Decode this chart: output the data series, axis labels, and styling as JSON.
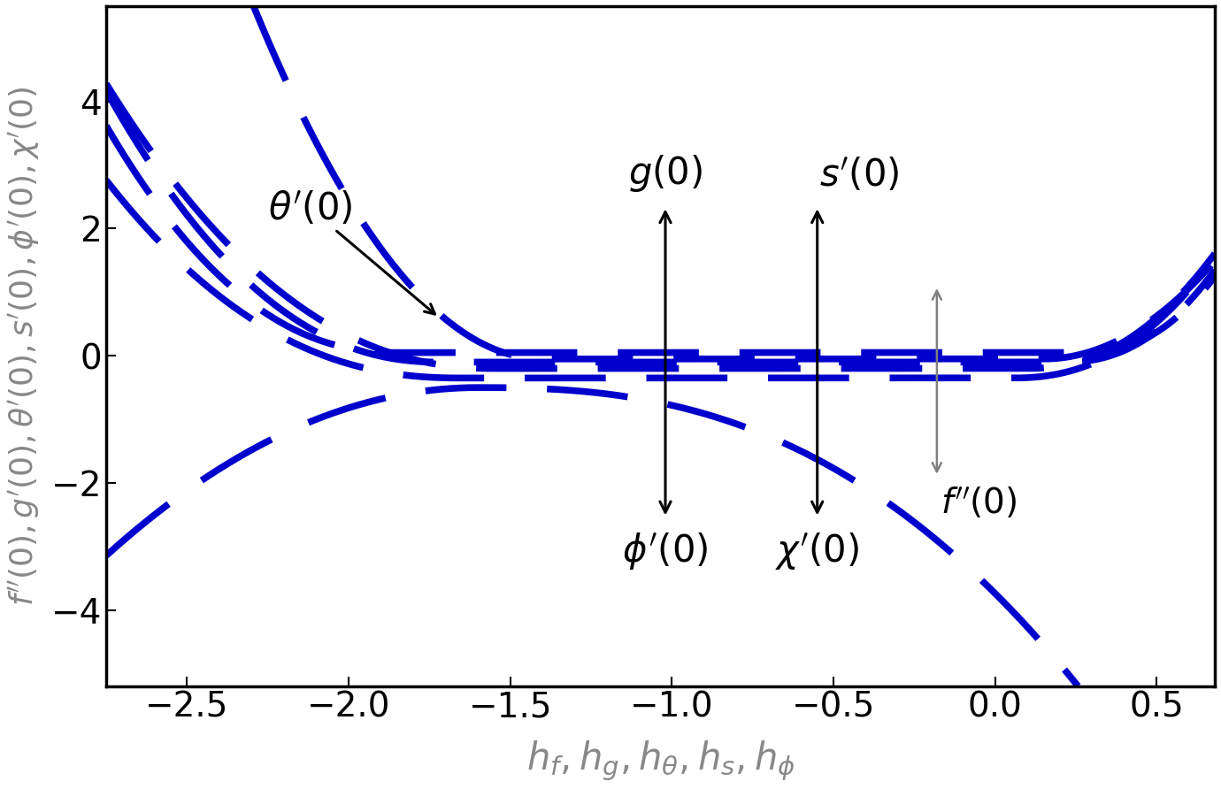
{
  "xlim": [
    -2.75,
    0.68
  ],
  "ylim": [
    -5.2,
    5.5
  ],
  "xlabel": "$h_f,h_g,h_\\theta,h_s,h_\\phi$",
  "ylabel": "$f^{\\prime\\prime}(0),g^{\\prime}(0),\\theta^{\\prime}(0),s^{\\prime}(0),\\phi^{\\prime}(0),\\chi^{\\prime}(0)$",
  "line_color": "#0000CD",
  "line_width": 5.5,
  "background_color": "#ffffff",
  "xlabel_color": "#888888",
  "ylabel_color": "#888888",
  "tick_labelsize": 28,
  "xlabel_fontsize": 30,
  "ylabel_fontsize": 26,
  "annotation_fontsize": 30,
  "figsize": [
    13.8,
    8.92
  ],
  "dpi": 100,
  "xticks": [
    -2.5,
    -2.0,
    -1.5,
    -1.0,
    -0.5,
    0.0,
    0.5
  ],
  "yticks": [
    -4,
    -2,
    0,
    2,
    4
  ]
}
